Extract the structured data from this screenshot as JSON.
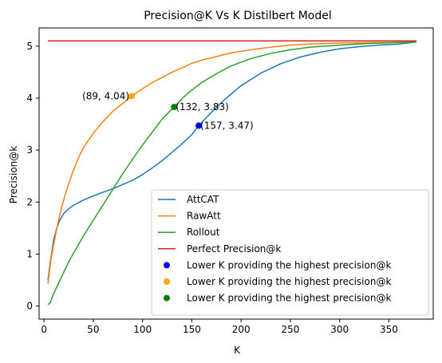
{
  "chart_data": {
    "type": "line",
    "title": "Precision@K Vs K Distilbert Model",
    "xlabel": "K",
    "ylabel": "Precision@k",
    "xlim": [
      -5,
      395
    ],
    "ylim": [
      -0.25,
      5.35
    ],
    "xticks": [
      0,
      50,
      100,
      150,
      200,
      250,
      300,
      350
    ],
    "yticks": [
      0,
      1,
      2,
      3,
      4,
      5
    ],
    "grid": false,
    "legend_position": "lower-right",
    "series": [
      {
        "name": "AttCAT",
        "color": "#1f77b4",
        "points": [
          [
            4,
            0.5
          ],
          [
            6,
            0.8
          ],
          [
            8,
            1.05
          ],
          [
            10,
            1.3
          ],
          [
            13,
            1.5
          ],
          [
            16,
            1.65
          ],
          [
            20,
            1.78
          ],
          [
            25,
            1.87
          ],
          [
            30,
            1.94
          ],
          [
            40,
            2.04
          ],
          [
            50,
            2.12
          ],
          [
            60,
            2.19
          ],
          [
            70,
            2.26
          ],
          [
            80,
            2.34
          ],
          [
            90,
            2.42
          ],
          [
            100,
            2.53
          ],
          [
            110,
            2.66
          ],
          [
            120,
            2.8
          ],
          [
            130,
            2.96
          ],
          [
            140,
            3.12
          ],
          [
            150,
            3.3
          ],
          [
            157,
            3.47
          ],
          [
            170,
            3.73
          ],
          [
            185,
            4.0
          ],
          [
            200,
            4.24
          ],
          [
            220,
            4.48
          ],
          [
            240,
            4.66
          ],
          [
            260,
            4.79
          ],
          [
            280,
            4.88
          ],
          [
            300,
            4.95
          ],
          [
            320,
            4.99
          ],
          [
            340,
            5.02
          ],
          [
            360,
            5.04
          ],
          [
            378,
            5.08
          ]
        ]
      },
      {
        "name": "RawAtt",
        "color": "#ff7f0e",
        "points": [
          [
            4,
            0.43
          ],
          [
            6,
            0.75
          ],
          [
            8,
            1.0
          ],
          [
            12,
            1.4
          ],
          [
            16,
            1.75
          ],
          [
            20,
            2.05
          ],
          [
            25,
            2.35
          ],
          [
            30,
            2.62
          ],
          [
            35,
            2.85
          ],
          [
            40,
            3.05
          ],
          [
            50,
            3.32
          ],
          [
            60,
            3.55
          ],
          [
            70,
            3.75
          ],
          [
            80,
            3.9
          ],
          [
            89,
            4.04
          ],
          [
            100,
            4.18
          ],
          [
            110,
            4.3
          ],
          [
            120,
            4.4
          ],
          [
            130,
            4.5
          ],
          [
            140,
            4.58
          ],
          [
            150,
            4.67
          ],
          [
            160,
            4.73
          ],
          [
            175,
            4.8
          ],
          [
            190,
            4.87
          ],
          [
            210,
            4.93
          ],
          [
            230,
            4.98
          ],
          [
            250,
            5.02
          ],
          [
            270,
            5.04
          ],
          [
            300,
            5.06
          ],
          [
            340,
            5.07
          ],
          [
            378,
            5.08
          ]
        ]
      },
      {
        "name": "Rollout",
        "color": "#2ca02c",
        "points": [
          [
            4,
            0.03
          ],
          [
            6,
            0.06
          ],
          [
            10,
            0.25
          ],
          [
            15,
            0.45
          ],
          [
            20,
            0.65
          ],
          [
            25,
            0.85
          ],
          [
            30,
            1.02
          ],
          [
            40,
            1.35
          ],
          [
            50,
            1.65
          ],
          [
            60,
            1.95
          ],
          [
            70,
            2.25
          ],
          [
            80,
            2.55
          ],
          [
            90,
            2.83
          ],
          [
            100,
            3.1
          ],
          [
            110,
            3.35
          ],
          [
            120,
            3.6
          ],
          [
            132,
            3.83
          ],
          [
            145,
            4.08
          ],
          [
            160,
            4.3
          ],
          [
            175,
            4.47
          ],
          [
            190,
            4.62
          ],
          [
            210,
            4.76
          ],
          [
            230,
            4.86
          ],
          [
            250,
            4.93
          ],
          [
            270,
            4.98
          ],
          [
            300,
            5.02
          ],
          [
            330,
            5.05
          ],
          [
            360,
            5.07
          ],
          [
            378,
            5.08
          ]
        ]
      },
      {
        "name": "Perfect Precision@k",
        "color": "#d62728",
        "points": [
          [
            4,
            5.1
          ],
          [
            378,
            5.1
          ]
        ]
      }
    ],
    "markers": [
      {
        "name": "Lower K providing the highest precision@k",
        "color": "#0000ff",
        "x": 157,
        "y": 3.47,
        "label": "(157, 3.47)",
        "label_side": "right"
      },
      {
        "name": "Lower K providing the highest precision@k",
        "color": "#ffa500",
        "x": 89,
        "y": 4.04,
        "label": "(89, 4.04)",
        "label_side": "left"
      },
      {
        "name": "Lower K providing the highest precision@k",
        "color": "#008000",
        "x": 132,
        "y": 3.83,
        "label": "(132, 3.83)",
        "label_side": "right"
      }
    ]
  }
}
